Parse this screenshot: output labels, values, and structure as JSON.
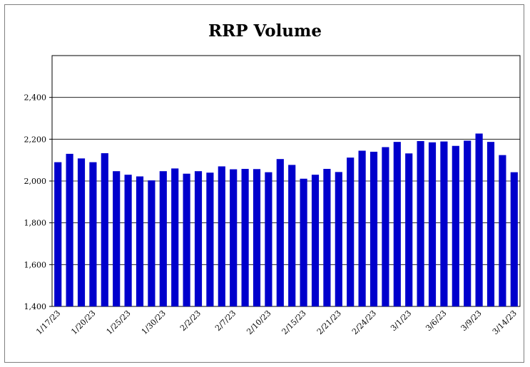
{
  "chart_data": {
    "type": "bar",
    "title": "RRP Volume",
    "xlabel": "",
    "ylabel": "",
    "ylim": [
      1400,
      2600
    ],
    "yticks": [
      "1,400",
      "1,600",
      "1,800",
      "2,000",
      "2,200",
      "2,400"
    ],
    "ytick_values": [
      1400,
      1600,
      1800,
      2000,
      2200,
      2400
    ],
    "grid": true,
    "bar_color": "#0000cc",
    "x_tick_labels": [
      "1/17/23",
      "1/20/23",
      "1/25/23",
      "1/30/23",
      "2/2/23",
      "2/7/23",
      "2/10/23",
      "2/15/23",
      "2/21/23",
      "2/24/23",
      "3/1/23",
      "3/6/23",
      "3/9/23",
      "3/14/23"
    ],
    "x_tick_bar_index": [
      0,
      3,
      6,
      9,
      12,
      15,
      18,
      21,
      24,
      27,
      30,
      33,
      36,
      39
    ],
    "values": [
      2090,
      2130,
      2108,
      2090,
      2133,
      2047,
      2030,
      2022,
      2003,
      2047,
      2060,
      2035,
      2047,
      2040,
      2070,
      2056,
      2058,
      2057,
      2042,
      2105,
      2077,
      2011,
      2030,
      2058,
      2043,
      2112,
      2145,
      2140,
      2162,
      2187,
      2132,
      2191,
      2185,
      2189,
      2168,
      2193,
      2227,
      2187,
      2124,
      2042
    ]
  }
}
